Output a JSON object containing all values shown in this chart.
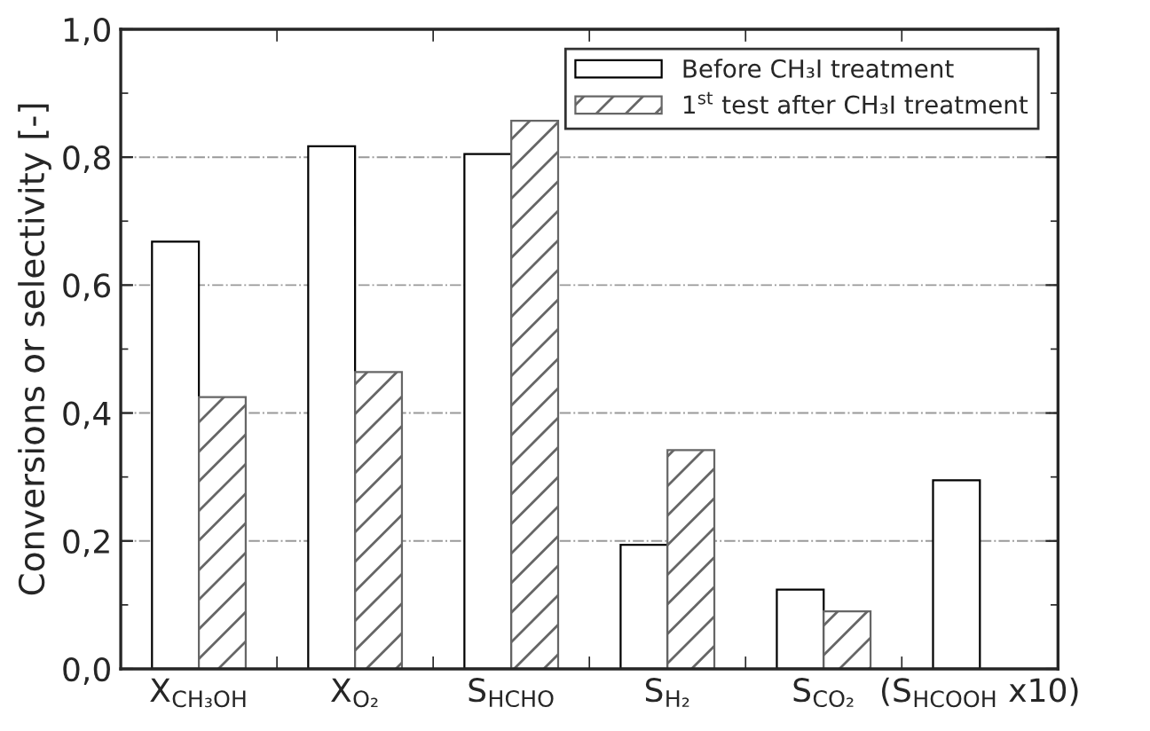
{
  "chart_data": {
    "type": "bar",
    "ylabel": "Conversions or selectivity [-]",
    "categories": [
      "X$_{CH₃OH}$",
      "X$_{O₂}$",
      "S$_{HCHO}$",
      "S$_{H₂}$",
      "S$_{CO₂}$",
      "(S$_{HCOOH}$ x10)"
    ],
    "series": [
      {
        "name": "Before CH₃I treatment",
        "color": "#ffffff",
        "values": [
          0.668,
          0.817,
          0.805,
          0.194,
          0.124,
          0.295
        ]
      },
      {
        "name": "1$^{st}$ test after CH₃I treatment",
        "color": "#666666",
        "values": [
          0.425,
          0.464,
          0.857,
          0.342,
          0.09,
          null
        ]
      }
    ],
    "ylim": [
      0,
      1
    ],
    "yticks": [
      {
        "value": 0,
        "label": "0,0"
      },
      {
        "value": 0.2,
        "label": "0,2"
      },
      {
        "value": 0.4,
        "label": "0,4"
      },
      {
        "value": 0.6,
        "label": "0,6"
      },
      {
        "value": 0.8,
        "label": "0,8"
      },
      {
        "value": 1,
        "label": "1,0"
      }
    ],
    "grid": "y",
    "legend": "top right"
  }
}
